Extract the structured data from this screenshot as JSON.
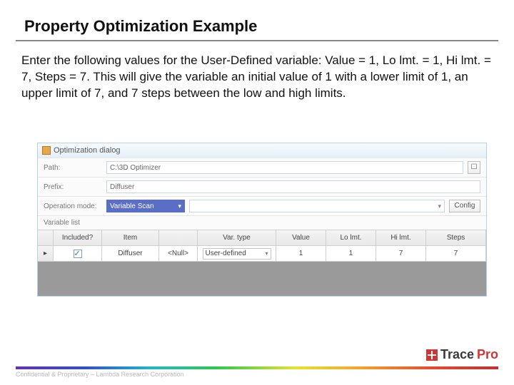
{
  "title": "Property Optimization Example",
  "body_text": "Enter the following values for the User-Defined variable: Value = 1, Lo lmt. = 1, Hi lmt. = 7, Steps = 7. This will give the variable an initial value of 1 with a lower limit of 1, an upper limit of 7, and 7 steps between the low and high limits.",
  "dialog": {
    "title": "Optimization dialog",
    "path_label": "Path:",
    "path_value": "C:\\3D Optimizer",
    "prefix_label": "Prefix:",
    "prefix_value": "Diffuser",
    "opmode_label": "Operation mode:",
    "opmode_value": "Variable Scan",
    "config_label": "Config",
    "varlist_label": "Variable list",
    "browse_glyph": "☐",
    "columns": {
      "included": "Included?",
      "item": "Item",
      "blank": "",
      "vartype": "Var. type",
      "value": "Value",
      "lolmt": "Lo lmt.",
      "hilmt": "Hi lmt.",
      "steps": "Steps"
    },
    "row": {
      "marker": "▸",
      "item": "Diffuser",
      "blank": "<Null>",
      "vartype": "User-defined",
      "value": "1",
      "lolmt": "1",
      "hilmt": "7",
      "steps": "7"
    }
  },
  "footer": "Confidential & Proprietary – Lambda Research Corporation",
  "logo": {
    "brand": "Trace",
    "suffix": "Pro"
  }
}
